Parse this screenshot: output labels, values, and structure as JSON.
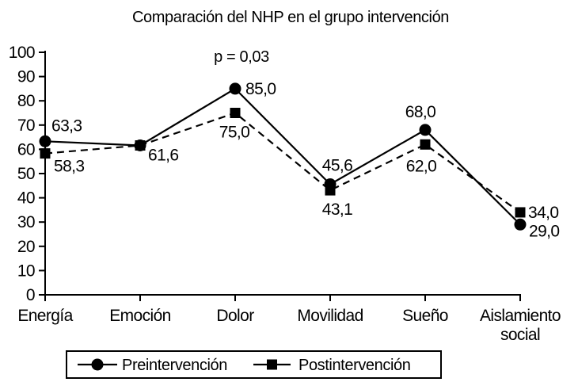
{
  "chart_data": {
    "type": "line",
    "title": "Comparación del NHP en el grupo intervención",
    "categories": [
      "Energía",
      "Emoción",
      "Dolor",
      "Movilidad",
      "Sueño",
      "Aislamiento social"
    ],
    "series": [
      {
        "name": "Preintervención",
        "marker": "circle",
        "line_style": "solid",
        "values": [
          63.3,
          61.6,
          85.0,
          45.6,
          68.0,
          29.0
        ],
        "point_labels": [
          "63,3",
          "",
          "85,0",
          "45,6",
          "68,0",
          "29,0"
        ]
      },
      {
        "name": "Postintervención",
        "marker": "square",
        "line_style": "dashed",
        "values": [
          58.3,
          61.6,
          75.0,
          43.1,
          62.0,
          34.0
        ],
        "point_labels": [
          "58,3",
          "61,6",
          "75,0",
          "43,1",
          "62,0",
          "34,0"
        ]
      }
    ],
    "annotation": {
      "text": "p = 0,03",
      "category": "Dolor"
    },
    "xlabel": "",
    "ylabel": "",
    "ylim": [
      0,
      100
    ],
    "ytick_step": 10,
    "grid": false,
    "legend_position": "bottom",
    "color": "#000000",
    "background": "#ffffff"
  }
}
